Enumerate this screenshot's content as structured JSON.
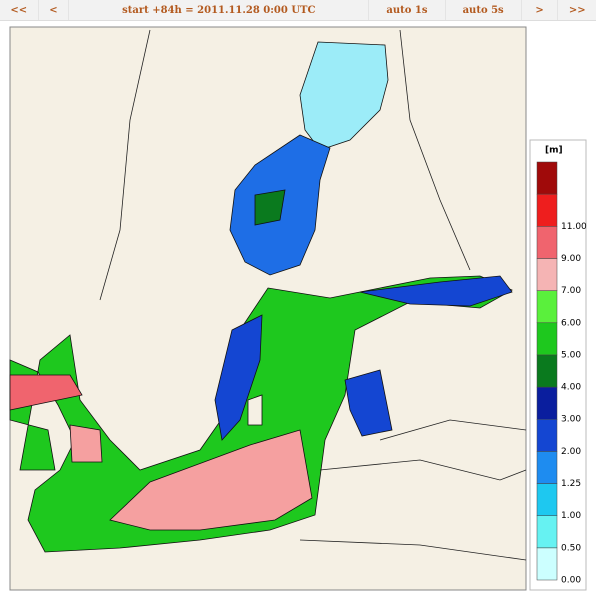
{
  "nav": {
    "buttons": [
      "<<",
      "<",
      "start +84h  =  2011.11.28 0:00 UTC",
      "auto 1s",
      "auto 5s",
      ">",
      ">>"
    ]
  },
  "legend": {
    "unit": "[m]",
    "bins": [
      {
        "label": "0.00",
        "color": "#ccffff"
      },
      {
        "label": "0.50",
        "color": "#66f2f2"
      },
      {
        "label": "1.00",
        "color": "#1ec8f0"
      },
      {
        "label": "1.25",
        "color": "#1e8cf0"
      },
      {
        "label": "2.00",
        "color": "#1446d2"
      },
      {
        "label": "3.00",
        "color": "#0a1e9e"
      },
      {
        "label": "4.00",
        "color": "#0a7a1e"
      },
      {
        "label": "5.00",
        "color": "#1ec81e"
      },
      {
        "label": "6.00",
        "color": "#5af03c"
      },
      {
        "label": "7.00",
        "color": "#f5b4b4"
      },
      {
        "label": "9.00",
        "color": "#f0646e"
      },
      {
        "label": "11.00",
        "color": "#ee1e1e"
      }
    ],
    "top_color": "#a00a0a"
  }
}
